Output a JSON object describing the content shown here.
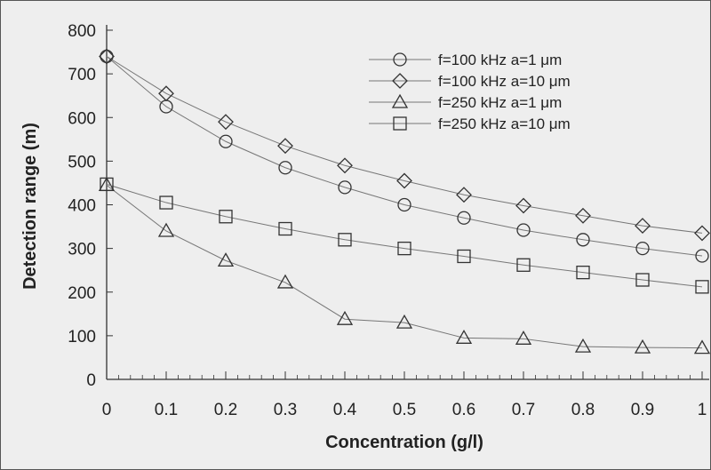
{
  "chart_data": {
    "type": "line",
    "title": "",
    "xlabel": "Concentration (g/l)",
    "ylabel": "Detection range (m)",
    "xlim": [
      0,
      1
    ],
    "ylim": [
      0,
      800
    ],
    "grid": false,
    "legend_position": "top-right",
    "x": [
      0,
      0.1,
      0.2,
      0.3,
      0.4,
      0.5,
      0.6,
      0.7,
      0.8,
      0.9,
      1
    ],
    "x_tick_labels": [
      "0",
      "0.1",
      "0.2",
      "0.3",
      "0.4",
      "0.5",
      "0.6",
      "0.7",
      "0.8",
      "0.9",
      "1"
    ],
    "y_tick_labels": [
      "0",
      "100",
      "200",
      "300",
      "400",
      "500",
      "600",
      "700",
      "800"
    ],
    "y_ticks": [
      0,
      100,
      200,
      300,
      400,
      500,
      600,
      700,
      800
    ],
    "series": [
      {
        "name": "f=100 kHz  a=1 μm",
        "marker": "circle",
        "values": [
          740,
          625,
          545,
          485,
          440,
          400,
          370,
          342,
          320,
          300,
          283
        ]
      },
      {
        "name": "f=100 kHz  a=10 μm",
        "marker": "diamond",
        "values": [
          740,
          655,
          590,
          535,
          490,
          455,
          423,
          398,
          375,
          352,
          335
        ]
      },
      {
        "name": "f=250 kHz  a=1 μm",
        "marker": "triangle",
        "values": [
          445,
          340,
          272,
          222,
          138,
          130,
          95,
          93,
          75,
          73,
          72
        ]
      },
      {
        "name": "f=250 kHz  a=10 μm",
        "marker": "square",
        "values": [
          447,
          405,
          373,
          345,
          320,
          300,
          282,
          262,
          245,
          228,
          212
        ]
      }
    ],
    "colors": {
      "line": "#777777",
      "marker": "#333333",
      "axis": "#333333"
    }
  }
}
